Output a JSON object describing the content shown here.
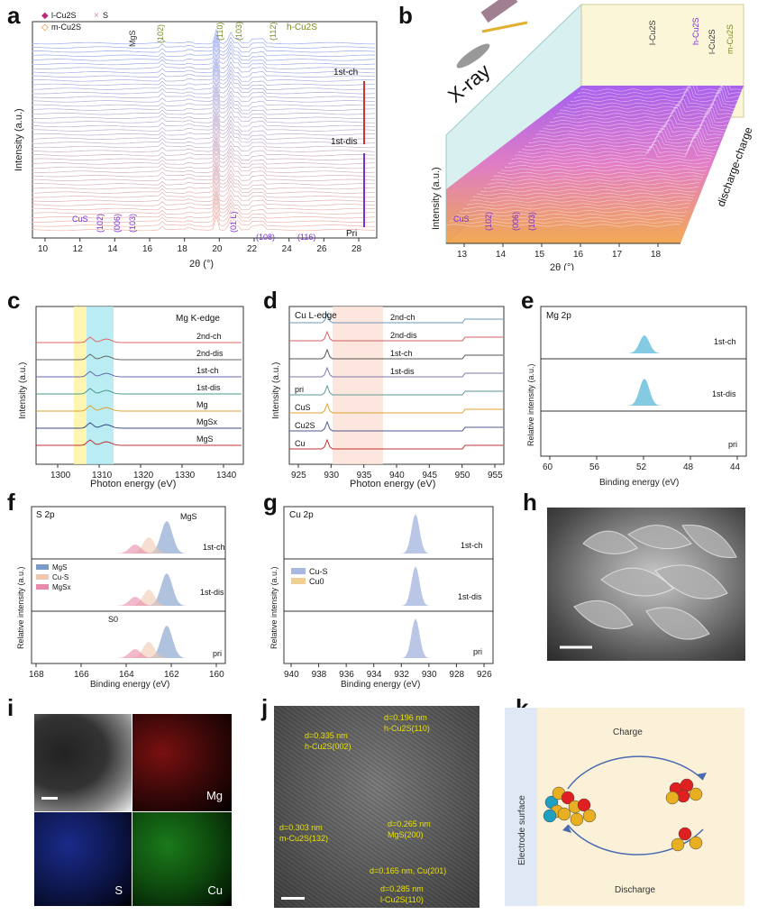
{
  "panels": {
    "a": {
      "letter": "a",
      "ylabel": "Intensity (a.u.)",
      "xlabel": "2θ (°)",
      "xticks": [
        "10",
        "12",
        "14",
        "16",
        "18",
        "20",
        "22",
        "24",
        "26",
        "28"
      ],
      "legend": [
        "l-Cu2S",
        "S",
        "m-Cu2S"
      ],
      "labels_top": [
        "MgS",
        "(102)",
        "(110)",
        "(103)",
        "(112)",
        "h-Cu2S"
      ],
      "labels_bottom": [
        "CuS",
        "(102)",
        "(006)",
        "(103)",
        "(01 L)",
        "(108)",
        "(116)"
      ],
      "states": [
        "1st-ch",
        "1st-dis",
        "Pri"
      ]
    },
    "b": {
      "letter": "b",
      "ylabel": "Intensity (a.u.)",
      "xlabel": "2θ (°)",
      "xticks": [
        "13",
        "14",
        "15",
        "16",
        "17",
        "18"
      ],
      "xray": "X-ray",
      "labels_top": [
        "l-Cu2S",
        "h-Cu2S",
        "l-Cu2S",
        "m-Cu2S"
      ],
      "labels_bottom": [
        "CuS",
        "(102)",
        "(006)",
        "(103)"
      ],
      "side": "discharge-charge"
    },
    "c": {
      "letter": "c",
      "title": "Mg K-edge",
      "ylabel": "Intensity (a.u.)",
      "xlabel": "Photon energy (eV)",
      "xticks": [
        "1300",
        "1310",
        "1320",
        "1330",
        "1340"
      ],
      "series": [
        "2nd-ch",
        "2nd-dis",
        "1st-ch",
        "1st-dis",
        "Mg",
        "MgSx",
        "MgS"
      ],
      "colors": [
        "#e06666",
        "#666666",
        "#6a6ab0",
        "#4a9a8a",
        "#e0a030",
        "#3a4a80",
        "#c03030"
      ]
    },
    "d": {
      "letter": "d",
      "title": "Cu L-edge",
      "ylabel": "Intensity (a.u.)",
      "xlabel": "Photon energy (eV)",
      "xticks": [
        "925",
        "930",
        "935",
        "940",
        "945",
        "950",
        "955"
      ],
      "series": [
        "2nd-ch",
        "2nd-dis",
        "1st-ch",
        "1st-dis",
        "pri",
        "CuS",
        "Cu2S",
        "Cu"
      ],
      "colors": [
        "#6a9ac0",
        "#d06060",
        "#555555",
        "#7a7ab0",
        "#5a9a9a",
        "#e0a030",
        "#4a5a90",
        "#c03030"
      ]
    },
    "e": {
      "letter": "e",
      "title": "Mg 2p",
      "ylabel": "Relative intensity (a.u.)",
      "xlabel": "Binding energy (eV)",
      "xticks": [
        "60",
        "56",
        "52",
        "48",
        "44"
      ],
      "rows": [
        "1st-ch",
        "1st-dis",
        "pri"
      ]
    },
    "f": {
      "letter": "f",
      "title": "S 2p",
      "peak_label": "MgS",
      "s0_label": "S0",
      "ylabel": "Relative intensity (a.u.)",
      "xlabel": "Binding energy (eV)",
      "xticks": [
        "168",
        "166",
        "164",
        "162",
        "160"
      ],
      "rows": [
        "1st-ch",
        "1st-dis",
        "pri"
      ],
      "legend": [
        "MgS",
        "Cu-S",
        "MgSx"
      ]
    },
    "g": {
      "letter": "g",
      "title": "Cu 2p",
      "ylabel": "Relative intensity (a.u.)",
      "xlabel": "Binding energy (eV)",
      "xticks": [
        "940",
        "938",
        "936",
        "934",
        "932",
        "930",
        "928",
        "926"
      ],
      "rows": [
        "1st-ch",
        "1st-dis",
        "pri"
      ],
      "legend": [
        "Cu-S",
        "Cu0"
      ]
    },
    "h": {
      "letter": "h"
    },
    "i": {
      "letter": "i",
      "maps": [
        "Mg",
        "S",
        "Cu"
      ]
    },
    "j": {
      "letter": "j",
      "annotations": [
        "d=0.335 nm",
        "h-Cu2S(002)",
        "d=0.196 nm",
        "h-Cu2S(110)",
        "d=0.303 nm",
        "m-Cu2S(132)",
        "d=0.265 nm",
        "MgS(200)",
        "d=0.165 nm, Cu(201)",
        "d=0.285 nm",
        "l-Cu2S(110)"
      ]
    },
    "k": {
      "letter": "k",
      "side_label": "Electrode surface",
      "charge": "Charge",
      "discharge": "Discharge"
    }
  }
}
